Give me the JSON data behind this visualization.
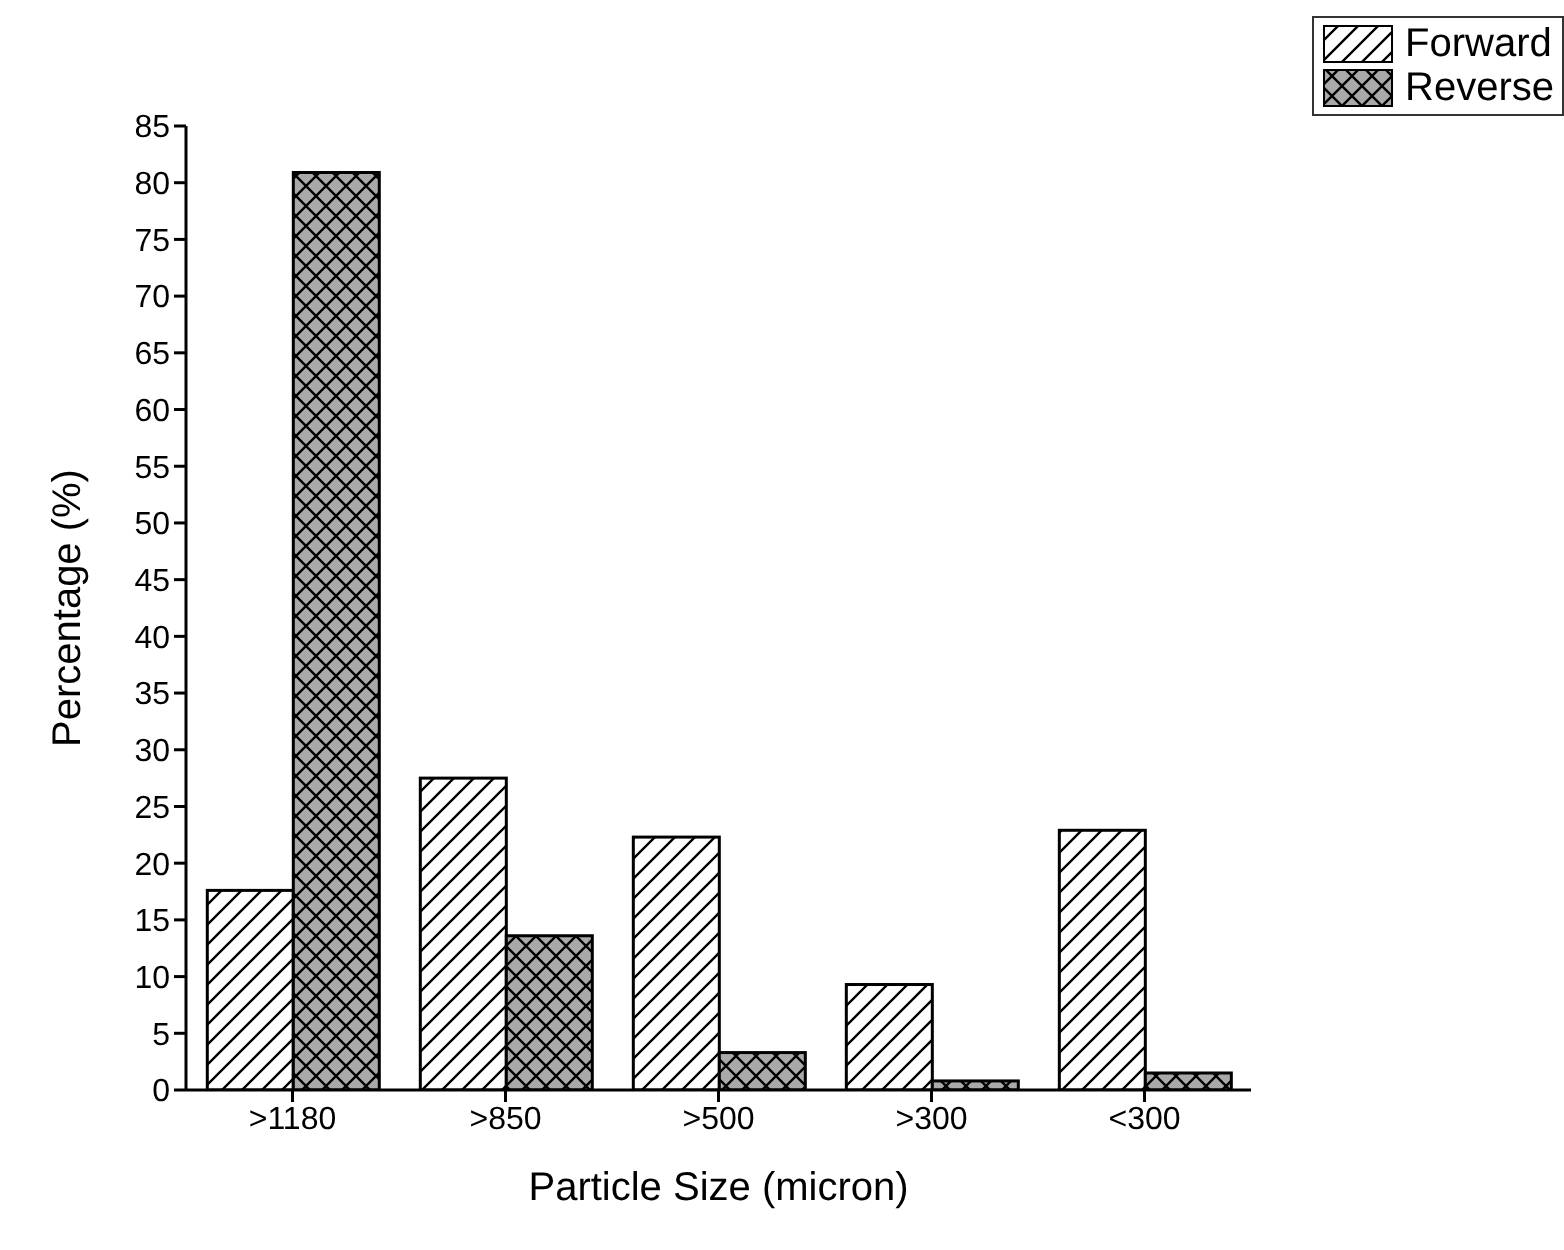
{
  "chart_data": {
    "type": "bar",
    "xlabel": "Particle Size (micron)",
    "ylabel": "Percentage (%)",
    "categories": [
      ">1180",
      ">850",
      ">500",
      ">300",
      "<300"
    ],
    "series": [
      {
        "name": "Forward",
        "color": "#ffffff",
        "values": [
          17.6,
          27.5,
          22.3,
          9.3,
          22.9
        ]
      },
      {
        "name": "Reverse",
        "color": "#a9a9a9",
        "values": [
          80.9,
          13.6,
          3.3,
          0.8,
          1.5
        ]
      }
    ],
    "ylim": [
      0,
      85
    ],
    "yticks": [
      0,
      5,
      10,
      15,
      20,
      25,
      30,
      35,
      40,
      45,
      50,
      55,
      60,
      65,
      70,
      75,
      80,
      85
    ],
    "grid": false,
    "legend": "top right"
  }
}
